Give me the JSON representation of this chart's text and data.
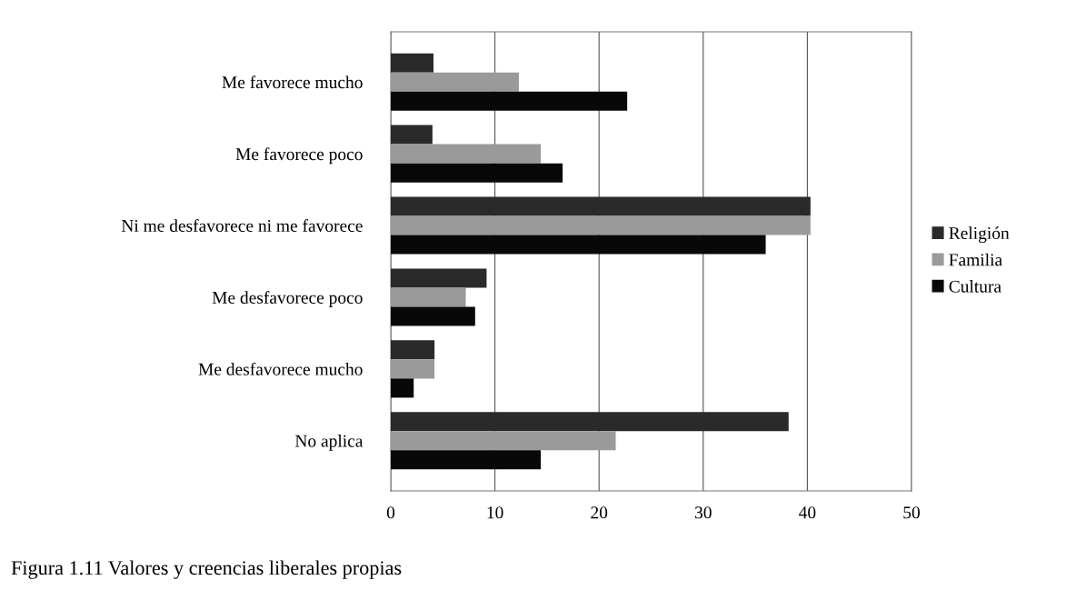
{
  "chart_data": {
    "type": "bar",
    "orientation": "horizontal",
    "categories": [
      "Me favorece mucho",
      "Me favorece poco",
      "Ni me desfavorece ni me favorece",
      "Me desfavorece poco",
      "Me desfavorece mucho",
      "No aplica"
    ],
    "series": [
      {
        "name": "Religión",
        "color": "#2a2a2a",
        "values": [
          4.1,
          4.0,
          40.3,
          9.2,
          4.2,
          38.2
        ]
      },
      {
        "name": "Familia",
        "color": "#9a9a9a",
        "values": [
          12.3,
          14.4,
          40.3,
          7.2,
          4.2,
          21.6
        ]
      },
      {
        "name": "Cultura",
        "color": "#080808",
        "values": [
          22.7,
          16.5,
          36.0,
          8.1,
          2.2,
          14.4
        ]
      }
    ],
    "xlim": [
      0,
      50
    ],
    "xticks": [
      0,
      10,
      20,
      30,
      40,
      50
    ],
    "grid": "x",
    "legend": "right",
    "annotations": [
      "Figura 1.11 Valores y creencias liberales propias"
    ]
  }
}
